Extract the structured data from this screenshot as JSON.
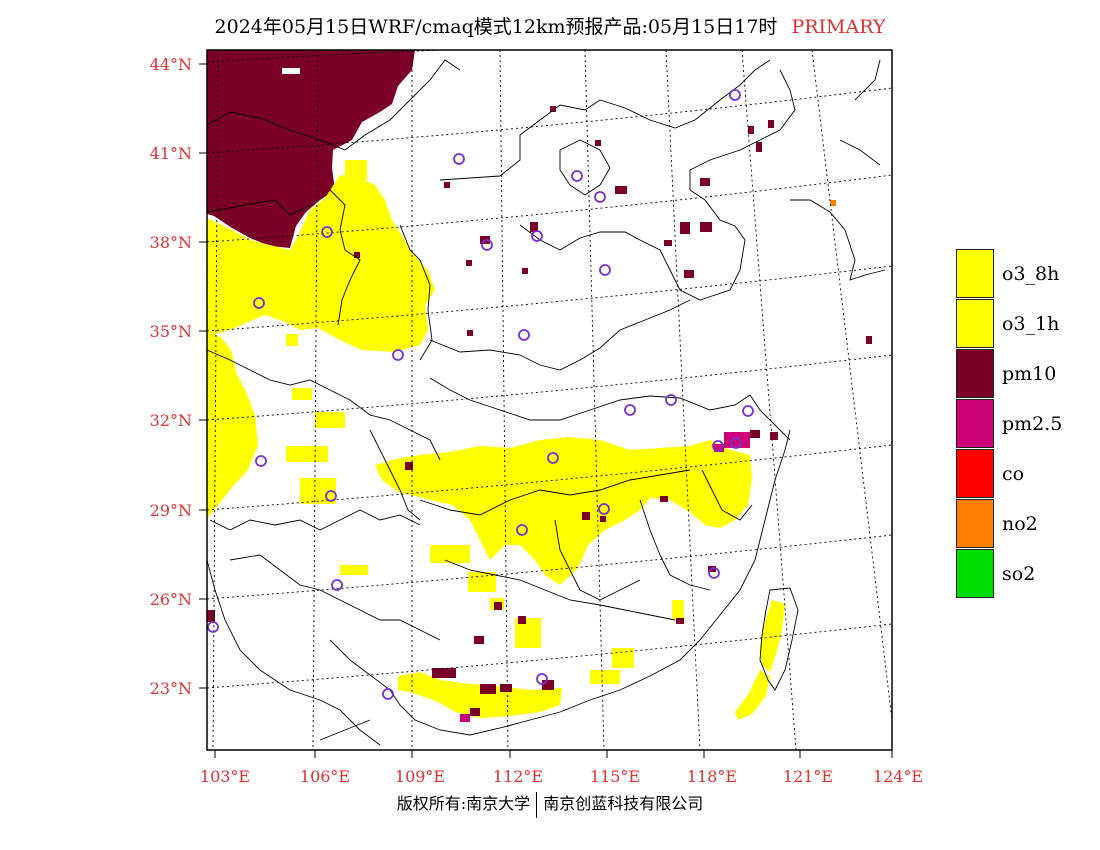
{
  "title": {
    "text": "2024年05月15日WRF/cmaq模式12km预报产品:05月15日17时",
    "tag": "PRIMARY"
  },
  "axes": {
    "lat_labels": [
      "44°N",
      "41°N",
      "38°N",
      "35°N",
      "32°N",
      "29°N",
      "26°N",
      "23°N"
    ],
    "lon_labels": [
      "103°E",
      "106°E",
      "109°E",
      "112°E",
      "115°E",
      "118°E",
      "121°E",
      "124°E"
    ]
  },
  "legend": {
    "items": [
      {
        "label": "o3_8h",
        "color": "#ffff00"
      },
      {
        "label": "o3_1h",
        "color": "#ffff00"
      },
      {
        "label": "pm10",
        "color": "#7a0028"
      },
      {
        "label": "pm2.5",
        "color": "#cc0077"
      },
      {
        "label": "co",
        "color": "#ff0000"
      },
      {
        "label": "no2",
        "color": "#ff7f00"
      },
      {
        "label": "so2",
        "color": "#00dd00"
      }
    ]
  },
  "colors": {
    "o3": "#ffff00",
    "pm10": "#7a0028",
    "pm25": "#cc0077",
    "station": "#7b2fd0",
    "axis_text": "#e03030"
  },
  "footer": {
    "left": "版权所有:南京大学",
    "right": "南京创蓝科技有限公司"
  }
}
